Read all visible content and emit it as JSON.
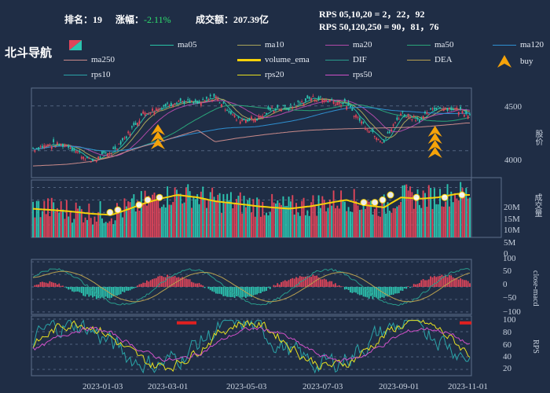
{
  "header": {
    "rank_label": "排名：19",
    "change_label": "涨幅：",
    "change_value": "-2.11%",
    "turnover_label": "成交额：207.39亿",
    "rps_short": "RPS 05,10,20 = 2，22，92",
    "rps_long": "RPS 50,120,250 = 90，81，76"
  },
  "brand": "北斗导航",
  "legend": [
    {
      "label": "ma05",
      "color": "#29c3a6",
      "thick": false
    },
    {
      "label": "ma10",
      "color": "#a8a35a",
      "thick": false
    },
    {
      "label": "ma20",
      "color": "#b04aa8",
      "thick": false
    },
    {
      "label": "ma50",
      "color": "#2aa57a",
      "thick": false
    },
    {
      "label": "ma120",
      "color": "#2f8fd0",
      "thick": false
    },
    {
      "label": "ma250",
      "color": "#c98a8a",
      "thick": false
    },
    {
      "label": "volume_ema",
      "color": "#f5d10a",
      "thick": true
    },
    {
      "label": "DIF",
      "color": "#2a9b8c",
      "thick": false
    },
    {
      "label": "DEA",
      "color": "#b8a050",
      "thick": false
    },
    {
      "label": "buy",
      "color": "#f5a30a",
      "thick": false,
      "icon": "triangle"
    },
    {
      "label": "rps10",
      "color": "#2aa4a8",
      "thick": false
    },
    {
      "label": "rps20",
      "color": "#e8e020",
      "thick": false
    },
    {
      "label": "rps50",
      "color": "#d050c8",
      "thick": false
    }
  ],
  "axes": {
    "price_label": "股价",
    "price_ticks": [
      "4500",
      "4000"
    ],
    "volume_label": "成交量",
    "volume_ticks": [
      "20M",
      "15M",
      "10M",
      "5M",
      "0"
    ],
    "macd_label": "close-macd",
    "macd_ticks": [
      "100",
      "50",
      "0",
      "−50",
      "−100"
    ],
    "rps_label": "RPS",
    "rps_ticks": [
      "100",
      "80",
      "60",
      "40",
      "20"
    ],
    "x_ticks": [
      "2023-01-03",
      "2023-03-01",
      "2023-05-03",
      "2023-07-03",
      "2023-09-01",
      "2023-11-01"
    ]
  },
  "chart_data": {
    "type": "candlestick",
    "price_range": [
      3700,
      4700
    ],
    "price_anchor_dates": [
      "2022-11-15",
      "2022-12-01",
      "2022-12-15",
      "2023-01-03",
      "2023-01-20",
      "2023-02-01",
      "2023-02-15",
      "2023-03-01",
      "2023-03-15",
      "2023-04-01",
      "2023-04-15",
      "2023-05-03",
      "2023-05-20",
      "2023-06-01",
      "2023-06-15",
      "2023-07-03",
      "2023-07-20",
      "2023-08-01",
      "2023-08-15",
      "2023-09-01",
      "2023-09-15",
      "2023-10-01",
      "2023-10-15",
      "2023-11-01",
      "2023-11-08"
    ],
    "price_anchor_close": [
      4020,
      4070,
      4060,
      3880,
      3990,
      4160,
      4420,
      4480,
      4560,
      4520,
      4610,
      4350,
      4360,
      4470,
      4480,
      4590,
      4560,
      4520,
      4300,
      4100,
      4420,
      4350,
      4490,
      4460,
      4420
    ],
    "ma250_anchor": [
      3830,
      3840,
      3850,
      3880,
      3930,
      3990,
      4050,
      4100,
      4160,
      4230,
      4100,
      4140,
      4170,
      4190,
      4210,
      4230,
      4240,
      4245,
      4250,
      4255,
      4260,
      4265,
      4280,
      4300,
      4310
    ],
    "volume_ema_anchor_M": [
      11.5,
      11.0,
      10.5,
      9.5,
      9.0,
      11.0,
      13.5,
      15.5,
      17.0,
      16.0,
      14.5,
      13.5,
      12.5,
      12.0,
      11.5,
      12.5,
      14.0,
      15.0,
      13.0,
      12.0,
      16.0,
      15.5,
      16.0,
      17.5,
      17.0
    ],
    "volume_range_M": [
      0,
      23
    ],
    "macd_range": [
      -110,
      110
    ],
    "rps_range": [
      10,
      105
    ],
    "buy_signals": [
      {
        "date": "2023-03-01",
        "count": 3
      },
      {
        "date": "2023-10-15",
        "count": 4
      }
    ]
  }
}
